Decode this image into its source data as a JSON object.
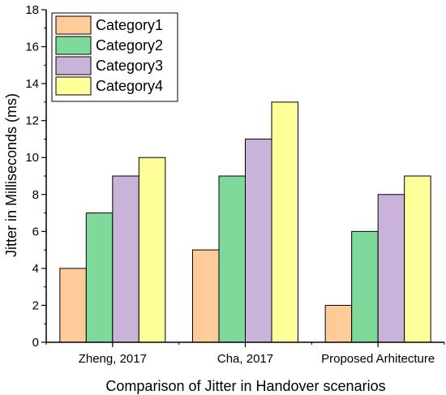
{
  "chart_data": {
    "type": "bar",
    "title": "",
    "xlabel": "Comparison of Jitter in Handover scenarios",
    "ylabel": "Jitter in Milliseconds (ms)",
    "ylim": [
      0,
      18
    ],
    "yticks": [
      0,
      2,
      4,
      6,
      8,
      10,
      12,
      14,
      16,
      18
    ],
    "categories": [
      "Zheng, 2017",
      "Cha, 2017",
      "Proposed Arhitecture"
    ],
    "series": [
      {
        "name": "Category1",
        "values": [
          4,
          5,
          2
        ],
        "color": "#FFCC99"
      },
      {
        "name": "Category2",
        "values": [
          7,
          9,
          6
        ],
        "color": "#7FD99A"
      },
      {
        "name": "Category3",
        "values": [
          9,
          11,
          8
        ],
        "color": "#C9B3DB"
      },
      {
        "name": "Category4",
        "values": [
          10,
          13,
          9
        ],
        "color": "#FFFF99"
      }
    ],
    "grid": false,
    "legend_position": "top-left"
  }
}
